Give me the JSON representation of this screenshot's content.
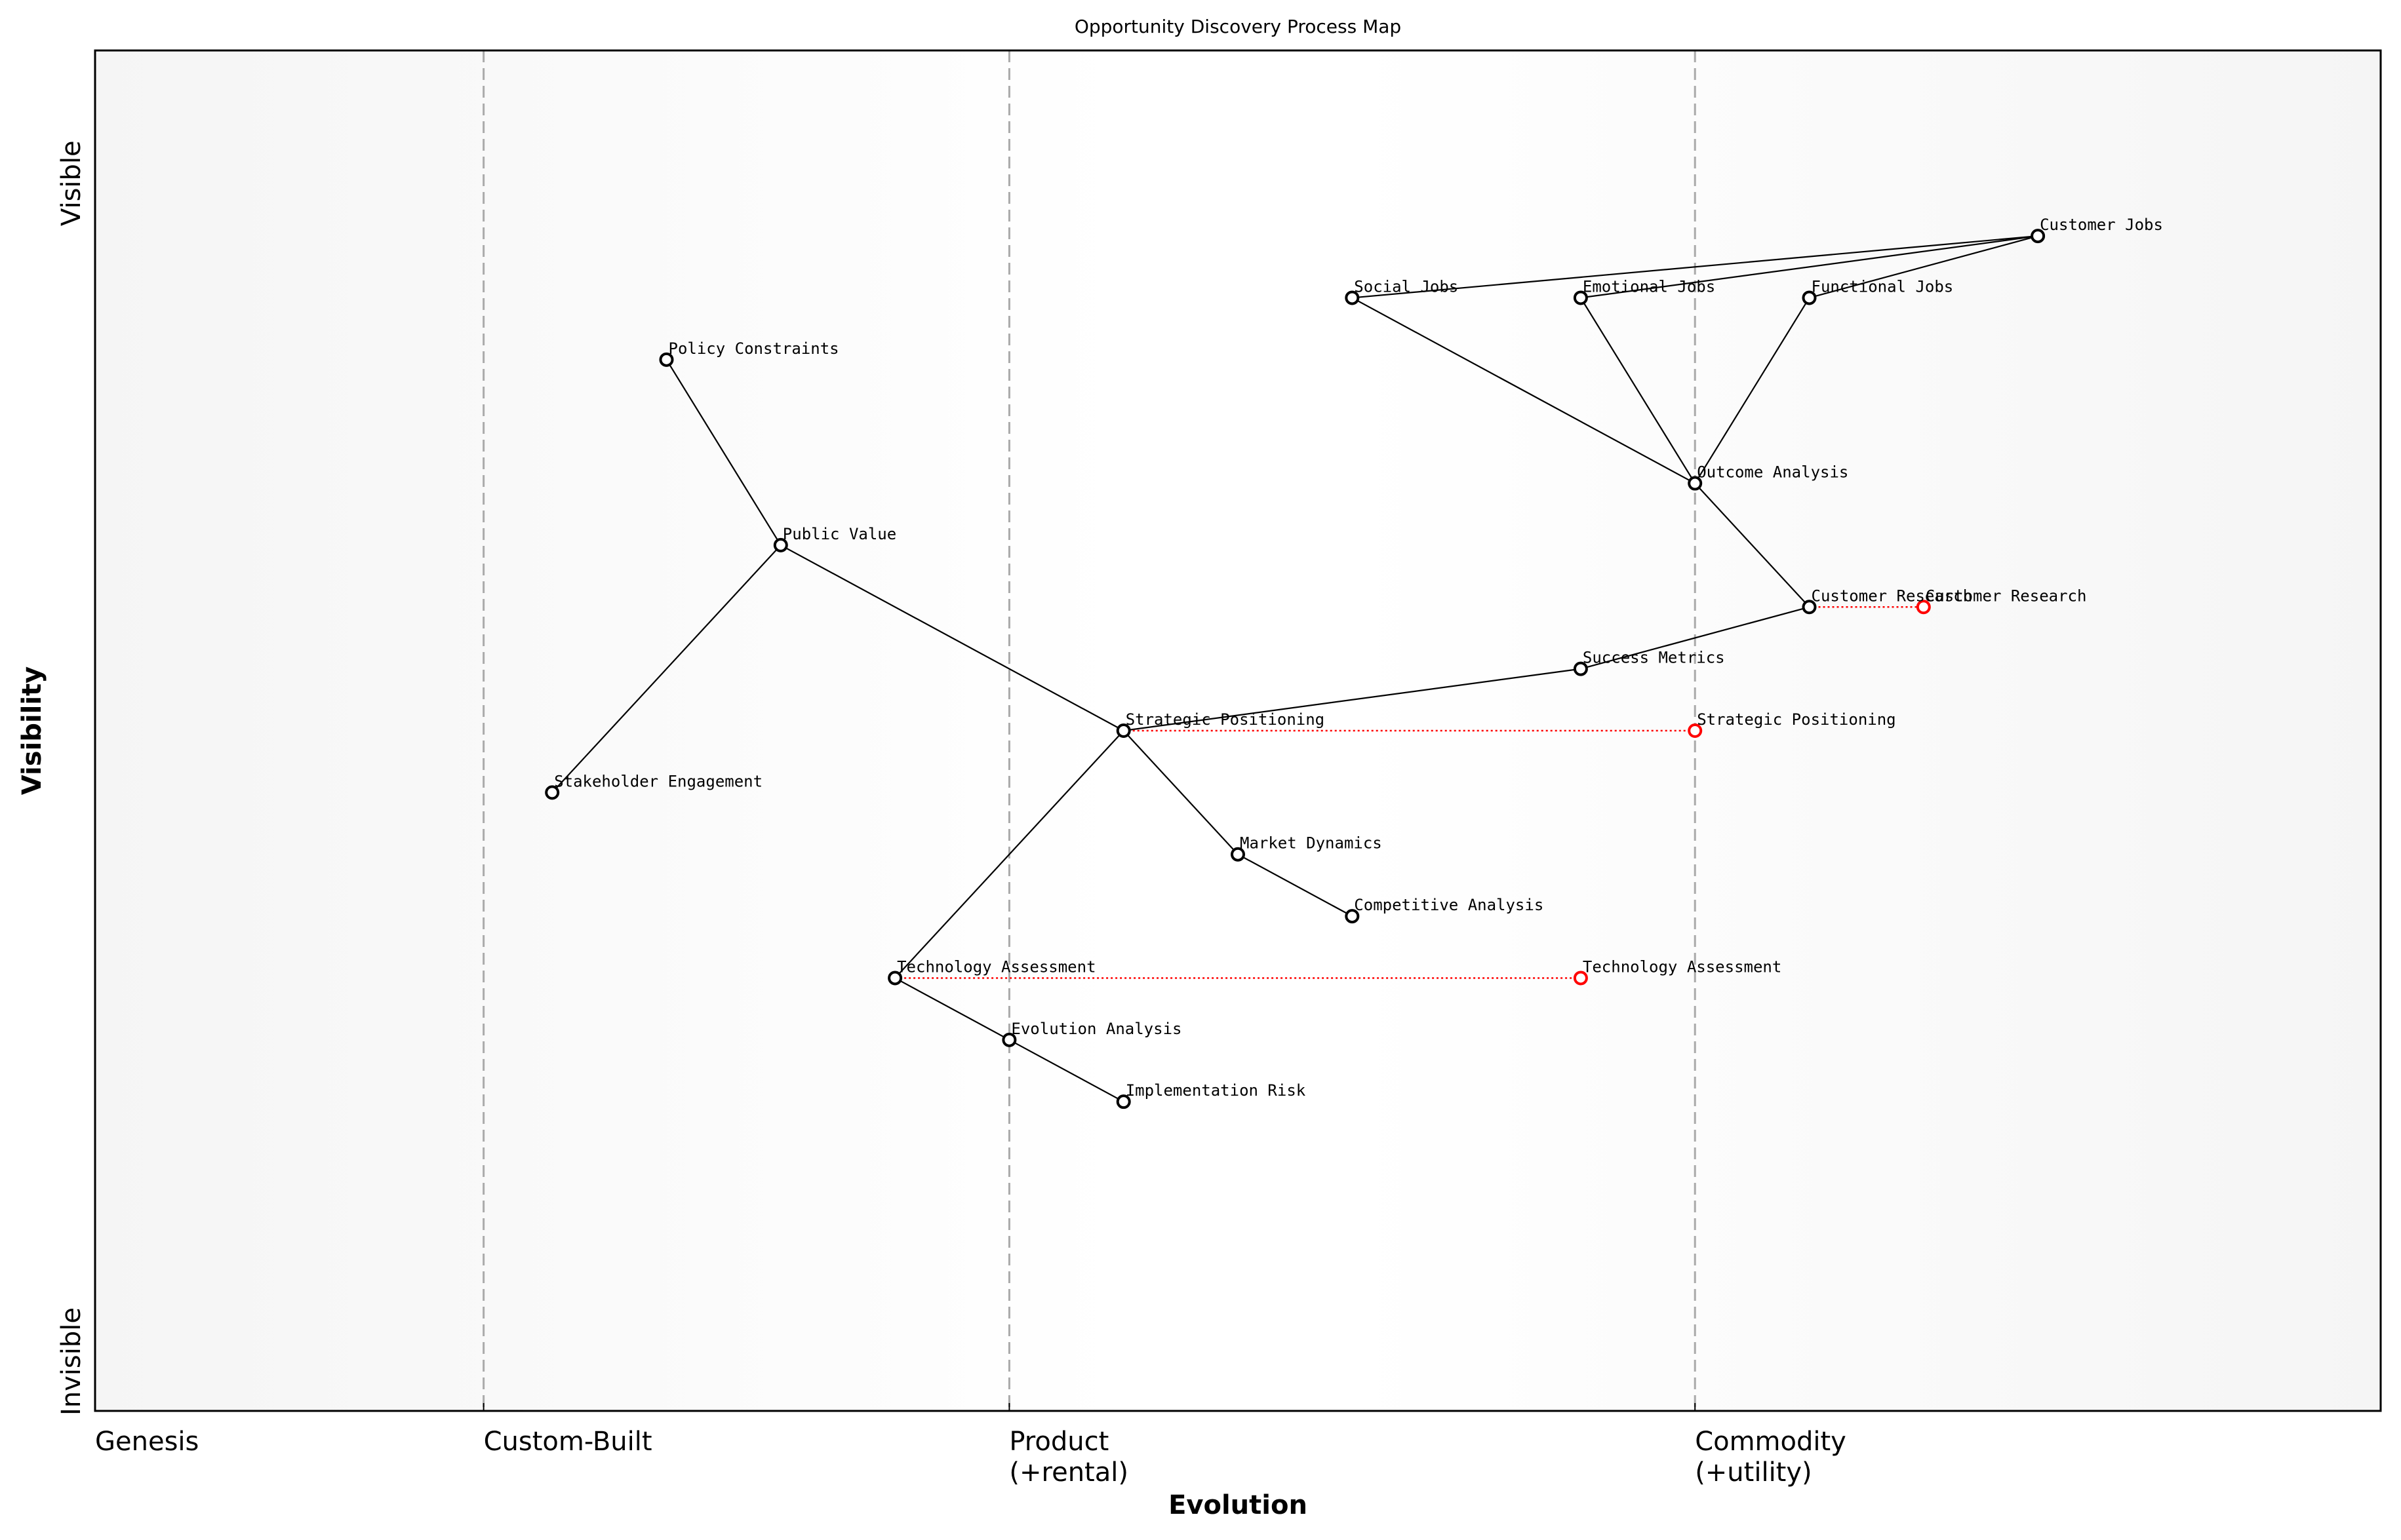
{
  "title": "Opportunity Discovery Process Map",
  "x_axis": {
    "label": "Evolution",
    "range": [
      0,
      1
    ],
    "stages": [
      {
        "label": "Genesis",
        "sub": "",
        "value": 0.0
      },
      {
        "label": "Custom-Built",
        "sub": "",
        "value": 0.17
      },
      {
        "label": "Product",
        "sub": "(+rental)",
        "value": 0.4
      },
      {
        "label": "Commodity",
        "sub": "(+utility)",
        "value": 0.7
      }
    ]
  },
  "y_axis": {
    "label": "Visibility",
    "range": [
      0,
      1.1
    ],
    "top_label": "Visible",
    "bottom_label": "Invisible"
  },
  "colors": {
    "node": "#000000",
    "evolve": "#ff0000",
    "stage_line": "#aaaaaa",
    "background_edge": "#f5f5f5"
  },
  "components": [
    {
      "name": "Customer Jobs",
      "evolution": 0.85,
      "visibility": 0.95
    },
    {
      "name": "Social Jobs",
      "evolution": 0.55,
      "visibility": 0.9
    },
    {
      "name": "Emotional Jobs",
      "evolution": 0.65,
      "visibility": 0.9
    },
    {
      "name": "Functional Jobs",
      "evolution": 0.75,
      "visibility": 0.9
    },
    {
      "name": "Policy Constraints",
      "evolution": 0.25,
      "visibility": 0.85
    },
    {
      "name": "Outcome Analysis",
      "evolution": 0.7,
      "visibility": 0.75
    },
    {
      "name": "Public Value",
      "evolution": 0.3,
      "visibility": 0.7
    },
    {
      "name": "Customer Research",
      "evolution": 0.75,
      "visibility": 0.65
    },
    {
      "name": "Success Metrics",
      "evolution": 0.65,
      "visibility": 0.6
    },
    {
      "name": "Strategic Positioning",
      "evolution": 0.45,
      "visibility": 0.55
    },
    {
      "name": "Stakeholder Engagement",
      "evolution": 0.2,
      "visibility": 0.5
    },
    {
      "name": "Market Dynamics",
      "evolution": 0.5,
      "visibility": 0.45
    },
    {
      "name": "Competitive Analysis",
      "evolution": 0.55,
      "visibility": 0.4
    },
    {
      "name": "Technology Assessment",
      "evolution": 0.35,
      "visibility": 0.35
    },
    {
      "name": "Evolution Analysis",
      "evolution": 0.4,
      "visibility": 0.3
    },
    {
      "name": "Implementation Risk",
      "evolution": 0.45,
      "visibility": 0.25
    }
  ],
  "links": [
    [
      "Customer Jobs",
      "Social Jobs"
    ],
    [
      "Customer Jobs",
      "Emotional Jobs"
    ],
    [
      "Customer Jobs",
      "Functional Jobs"
    ],
    [
      "Social Jobs",
      "Outcome Analysis"
    ],
    [
      "Emotional Jobs",
      "Outcome Analysis"
    ],
    [
      "Functional Jobs",
      "Outcome Analysis"
    ],
    [
      "Outcome Analysis",
      "Customer Research"
    ],
    [
      "Customer Research",
      "Success Metrics"
    ],
    [
      "Success Metrics",
      "Strategic Positioning"
    ],
    [
      "Strategic Positioning",
      "Public Value"
    ],
    [
      "Public Value",
      "Policy Constraints"
    ],
    [
      "Public Value",
      "Stakeholder Engagement"
    ],
    [
      "Strategic Positioning",
      "Market Dynamics"
    ],
    [
      "Market Dynamics",
      "Competitive Analysis"
    ],
    [
      "Strategic Positioning",
      "Technology Assessment"
    ],
    [
      "Technology Assessment",
      "Evolution Analysis"
    ],
    [
      "Evolution Analysis",
      "Implementation Risk"
    ]
  ],
  "evolutions": [
    {
      "name": "Customer Research",
      "to": 0.8
    },
    {
      "name": "Strategic Positioning",
      "to": 0.7
    },
    {
      "name": "Technology Assessment",
      "to": 0.65
    }
  ]
}
